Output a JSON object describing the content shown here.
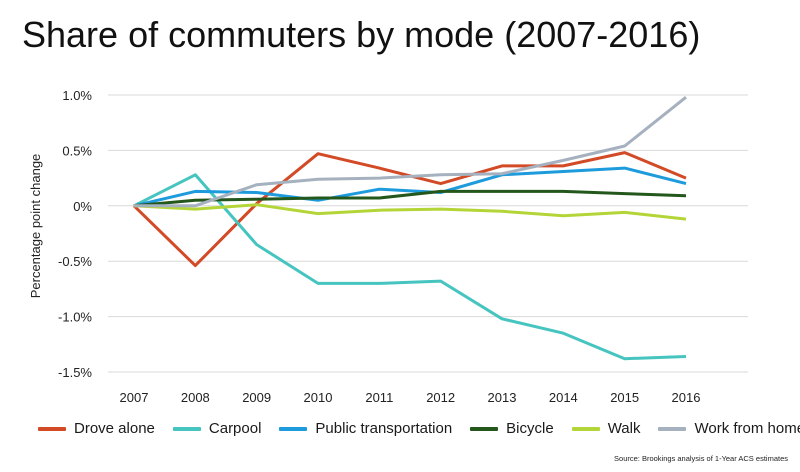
{
  "chart_data": {
    "type": "line",
    "title": "Share of commuters by mode (2007-2016)",
    "ylabel": "Percentage point change",
    "x": [
      2007,
      2008,
      2009,
      2010,
      2011,
      2012,
      2013,
      2014,
      2015,
      2016
    ],
    "x_tick_labels": [
      "2007",
      "2008",
      "2009",
      "2010",
      "2011",
      "2012",
      "2013",
      "2014",
      "2015",
      "2016"
    ],
    "ylim": [
      -1.5,
      1.0
    ],
    "y_ticks": [
      1.0,
      0.5,
      0,
      -0.5,
      -1.0,
      -1.5
    ],
    "y_tick_labels": [
      "1.0%",
      "0.5%",
      "0%",
      "-0.5%",
      "-1.0%",
      "-1.5%"
    ],
    "grid": "horizontal",
    "legend_position": "bottom",
    "series": [
      {
        "name": "Drove alone",
        "color": "#d24a26",
        "values": [
          0,
          -0.54,
          0.02,
          0.47,
          0.34,
          0.2,
          0.36,
          0.36,
          0.48,
          0.25
        ]
      },
      {
        "name": "Carpool",
        "color": "#45c4c0",
        "values": [
          0,
          0.28,
          -0.35,
          -0.7,
          -0.7,
          -0.68,
          -1.02,
          -1.15,
          -1.38,
          -1.36
        ]
      },
      {
        "name": "Public transportation",
        "color": "#1e9bdc",
        "values": [
          0,
          0.13,
          0.12,
          0.05,
          0.15,
          0.12,
          0.28,
          0.31,
          0.34,
          0.2
        ]
      },
      {
        "name": "Bicycle",
        "color": "#23571b",
        "values": [
          0,
          0.05,
          0.06,
          0.07,
          0.07,
          0.13,
          0.13,
          0.13,
          0.11,
          0.09
        ]
      },
      {
        "name": "Walk",
        "color": "#b4d538",
        "values": [
          0,
          -0.03,
          0.01,
          -0.07,
          -0.04,
          -0.03,
          -0.05,
          -0.09,
          -0.06,
          -0.12
        ]
      },
      {
        "name": "Work from home",
        "color": "#a6b1bf",
        "values": [
          0,
          0,
          0.19,
          0.24,
          0.25,
          0.28,
          0.29,
          0.41,
          0.54,
          0.98
        ]
      }
    ],
    "source": "Source: Brookings analysis of 1-Year ACS estimates"
  }
}
